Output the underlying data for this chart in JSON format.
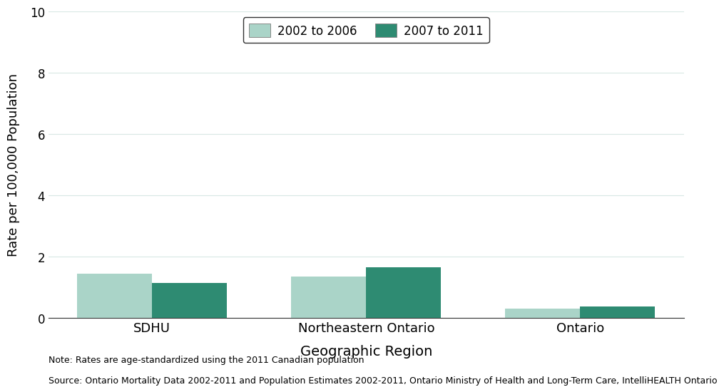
{
  "categories": [
    "SDHU",
    "Northeastern Ontario",
    "Ontario"
  ],
  "values_2002_2006": [
    1.45,
    1.35,
    0.3
  ],
  "values_2007_2011": [
    1.15,
    1.65,
    0.37
  ],
  "color_2002_2006": "#aad4c8",
  "color_2007_2011": "#2e8b72",
  "ylabel": "Rate per 100,000 Population",
  "xlabel": "Geographic Region",
  "ylim": [
    0,
    10
  ],
  "yticks": [
    0,
    2,
    4,
    6,
    8,
    10
  ],
  "legend_label_1": "2002 to 2006",
  "legend_label_2": "2007 to 2011",
  "note_line1": "Note: Rates are age-standardized using the 2011 Canadian population",
  "note_line2": "Source: Ontario Mortality Data 2002-2011 and Population Estimates 2002-2011, Ontario Ministry of Health and Long-Term Care, IntelliHEALTH Ontario",
  "bar_width": 0.35,
  "background_color": "#ffffff",
  "grid_color": "#d8e8e4"
}
